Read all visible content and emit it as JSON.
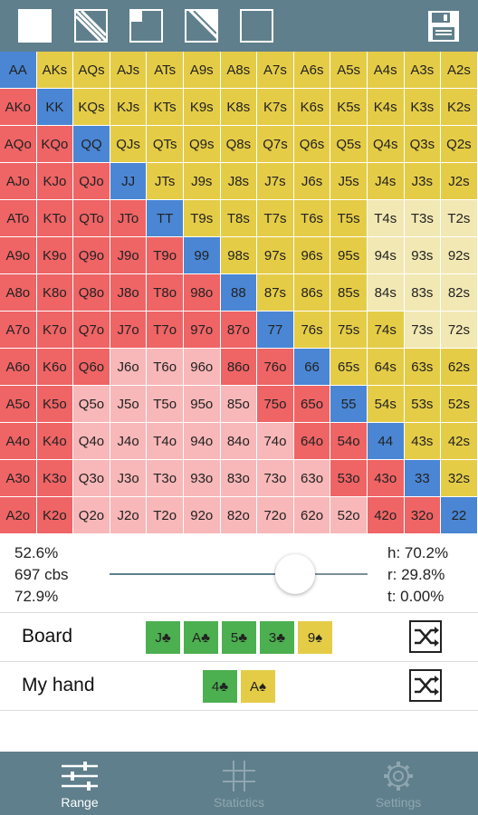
{
  "toolbar": {
    "buttons": [
      "fill-all",
      "diagonal-stripes",
      "top-left-fill",
      "diagonal-triangle",
      "empty"
    ],
    "save_icon": "floppy-disk-icon"
  },
  "grid": {
    "rows": [
      [
        "AA",
        "AKs",
        "AQs",
        "AJs",
        "ATs",
        "A9s",
        "A8s",
        "A7s",
        "A6s",
        "A5s",
        "A4s",
        "A3s",
        "A2s"
      ],
      [
        "AKo",
        "KK",
        "KQs",
        "KJs",
        "KTs",
        "K9s",
        "K8s",
        "K7s",
        "K6s",
        "K5s",
        "K4s",
        "K3s",
        "K2s"
      ],
      [
        "AQo",
        "KQo",
        "QQ",
        "QJs",
        "QTs",
        "Q9s",
        "Q8s",
        "Q7s",
        "Q6s",
        "Q5s",
        "Q4s",
        "Q3s",
        "Q2s"
      ],
      [
        "AJo",
        "KJo",
        "QJo",
        "JJ",
        "JTs",
        "J9s",
        "J8s",
        "J7s",
        "J6s",
        "J5s",
        "J4s",
        "J3s",
        "J2s"
      ],
      [
        "ATo",
        "KTo",
        "QTo",
        "JTo",
        "TT",
        "T9s",
        "T8s",
        "T7s",
        "T6s",
        "T5s",
        "T4s",
        "T3s",
        "T2s"
      ],
      [
        "A9o",
        "K9o",
        "Q9o",
        "J9o",
        "T9o",
        "99",
        "98s",
        "97s",
        "96s",
        "95s",
        "94s",
        "93s",
        "92s"
      ],
      [
        "A8o",
        "K8o",
        "Q8o",
        "J8o",
        "T8o",
        "98o",
        "88",
        "87s",
        "86s",
        "85s",
        "84s",
        "83s",
        "82s"
      ],
      [
        "A7o",
        "K7o",
        "Q7o",
        "J7o",
        "T7o",
        "97o",
        "87o",
        "77",
        "76s",
        "75s",
        "74s",
        "73s",
        "72s"
      ],
      [
        "A6o",
        "K6o",
        "Q6o",
        "J6o",
        "T6o",
        "96o",
        "86o",
        "76o",
        "66",
        "65s",
        "64s",
        "63s",
        "62s"
      ],
      [
        "A5o",
        "K5o",
        "Q5o",
        "J5o",
        "T5o",
        "95o",
        "85o",
        "75o",
        "65o",
        "55",
        "54s",
        "53s",
        "52s"
      ],
      [
        "A4o",
        "K4o",
        "Q4o",
        "J4o",
        "T4o",
        "94o",
        "84o",
        "74o",
        "64o",
        "54o",
        "44",
        "43s",
        "42s"
      ],
      [
        "A3o",
        "K3o",
        "Q3o",
        "J3o",
        "T3o",
        "93o",
        "83o",
        "73o",
        "63o",
        "53o",
        "43o",
        "33",
        "32s"
      ],
      [
        "A2o",
        "K2o",
        "Q2o",
        "J2o",
        "T2o",
        "92o",
        "82o",
        "72o",
        "62o",
        "52o",
        "42o",
        "32o",
        "22"
      ]
    ],
    "colors": [
      [
        "b",
        "y",
        "y",
        "y",
        "y",
        "y",
        "y",
        "y",
        "y",
        "y",
        "y",
        "y",
        "y"
      ],
      [
        "r",
        "b",
        "y",
        "y",
        "y",
        "y",
        "y",
        "y",
        "y",
        "y",
        "y",
        "y",
        "y"
      ],
      [
        "r",
        "r",
        "b",
        "y",
        "y",
        "y",
        "y",
        "y",
        "y",
        "y",
        "y",
        "y",
        "y"
      ],
      [
        "r",
        "r",
        "r",
        "b",
        "y",
        "y",
        "y",
        "y",
        "y",
        "y",
        "y",
        "y",
        "y"
      ],
      [
        "r",
        "r",
        "r",
        "r",
        "b",
        "y",
        "y",
        "y",
        "y",
        "y",
        "ly",
        "ly",
        "ly"
      ],
      [
        "r",
        "r",
        "r",
        "r",
        "r",
        "b",
        "y",
        "y",
        "y",
        "y",
        "ly",
        "ly",
        "ly"
      ],
      [
        "r",
        "r",
        "r",
        "r",
        "r",
        "r",
        "b",
        "y",
        "y",
        "y",
        "ly",
        "ly",
        "ly"
      ],
      [
        "r",
        "r",
        "r",
        "r",
        "r",
        "r",
        "r",
        "b",
        "y",
        "y",
        "y",
        "ly",
        "ly"
      ],
      [
        "r",
        "r",
        "r",
        "p",
        "p",
        "p",
        "r",
        "r",
        "b",
        "y",
        "y",
        "y",
        "y"
      ],
      [
        "r",
        "r",
        "p",
        "p",
        "p",
        "p",
        "p",
        "r",
        "r",
        "b",
        "y",
        "y",
        "y"
      ],
      [
        "r",
        "r",
        "p",
        "p",
        "p",
        "p",
        "p",
        "p",
        "r",
        "r",
        "b",
        "y",
        "y"
      ],
      [
        "r",
        "r",
        "p",
        "p",
        "p",
        "p",
        "p",
        "p",
        "p",
        "r",
        "r",
        "b",
        "y"
      ],
      [
        "r",
        "r",
        "p",
        "p",
        "p",
        "p",
        "p",
        "p",
        "p",
        "p",
        "r",
        "r",
        "b"
      ]
    ],
    "palette": {
      "r": "#ef6465",
      "p": "#f8b7b8",
      "y": "#e5cc47",
      "ly": "#f2e8b4",
      "b": "#4a86d4"
    }
  },
  "stats": {
    "left": [
      "52.6%",
      "697 cbs",
      "72.9%"
    ],
    "right": [
      "h: 70.2%",
      "r: 29.8%",
      "t: 0.00%"
    ],
    "slider_fraction": 0.72
  },
  "board": {
    "label": "Board",
    "cards": [
      {
        "text": "J♣",
        "color": "green"
      },
      {
        "text": "A♣",
        "color": "green"
      },
      {
        "text": "5♣",
        "color": "green"
      },
      {
        "text": "3♣",
        "color": "green"
      },
      {
        "text": "9♠",
        "color": "yellow"
      }
    ]
  },
  "hand": {
    "label": "My hand",
    "cards": [
      {
        "text": "4♣",
        "color": "green"
      },
      {
        "text": "A♠",
        "color": "yellow"
      }
    ]
  },
  "nav": {
    "items": [
      {
        "label": "Range",
        "icon": "sliders-icon",
        "active": true
      },
      {
        "label": "Statictics",
        "icon": "grid-icon",
        "active": false
      },
      {
        "label": "Settings",
        "icon": "gear-icon",
        "active": false
      }
    ],
    "active_color": "#ffffff",
    "inactive_color": "#8fa6b0"
  }
}
